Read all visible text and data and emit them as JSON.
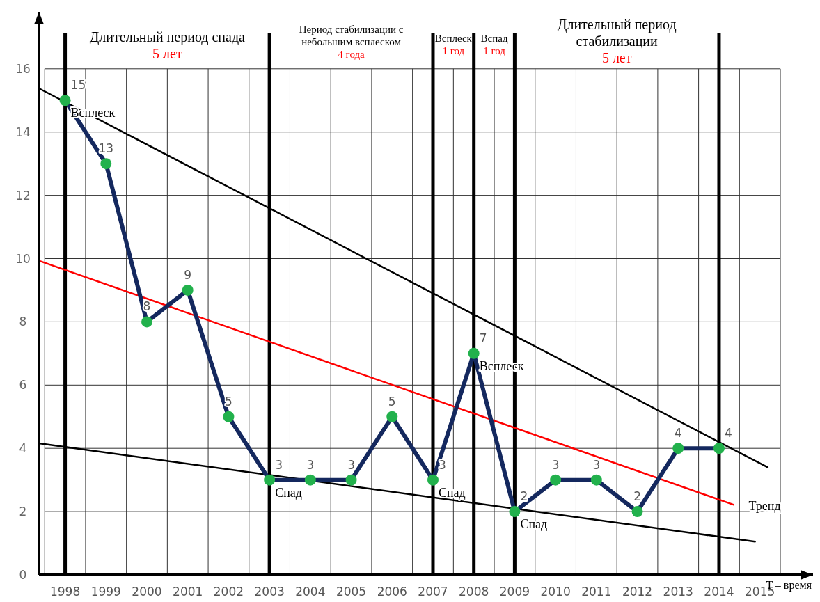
{
  "chart_data": {
    "type": "line",
    "xlabel": "T – время",
    "x": [
      1998,
      1999,
      2000,
      2001,
      2002,
      2003,
      2004,
      2005,
      2006,
      2007,
      2008,
      2009,
      2010,
      2011,
      2012,
      2013,
      2014
    ],
    "series": [
      {
        "color": "#14285e",
        "values": [
          15,
          13,
          8,
          9,
          5,
          3,
          3,
          3,
          5,
          3,
          7,
          2,
          3,
          3,
          2,
          4,
          4
        ],
        "value_labels": [
          "15",
          "13",
          "8",
          "9",
          "5",
          "3",
          "3",
          "3",
          "5",
          "3",
          "7",
          "2",
          "3",
          "3",
          "2",
          "4",
          "4"
        ]
      },
      {
        "type": "line",
        "color": "#000000",
        "marker": "none",
        "x": [
          1997.36,
          2015.19
        ],
        "values": [
          15.38,
          3.4
        ]
      },
      {
        "type": "line",
        "name": "Тренд",
        "color": "#ff0000",
        "marker": "none",
        "x": [
          1997.36,
          2014.35
        ],
        "values": [
          9.93,
          2.22
        ]
      },
      {
        "type": "line",
        "color": "#000000",
        "marker": "none",
        "x": [
          1997.36,
          2014.88
        ],
        "values": [
          4.16,
          1.05
        ]
      }
    ],
    "xlim": [
      1997.36,
      2016.3
    ],
    "xticks": [
      1998,
      1999,
      2000,
      2001,
      2002,
      2003,
      2004,
      2005,
      2006,
      2007,
      2008,
      2009,
      2010,
      2011,
      2012,
      2013,
      2014,
      2015
    ],
    "ylim": [
      0,
      17.8
    ],
    "yticks": [
      0,
      2,
      4,
      6,
      8,
      10,
      12,
      14,
      16
    ],
    "grid": true,
    "marker": "circle",
    "ref_lines": [
      {
        "axis": "x",
        "value": 1998,
        "color": "#000000"
      },
      {
        "axis": "x",
        "value": 2003,
        "color": "#000000"
      },
      {
        "axis": "x",
        "value": 2007,
        "color": "#000000"
      },
      {
        "axis": "x",
        "value": 2008,
        "color": "#000000"
      },
      {
        "axis": "x",
        "value": 2009,
        "color": "#000000"
      },
      {
        "axis": "x",
        "value": 2014,
        "color": "#000000"
      }
    ],
    "annotations": [
      "Длительный период спада\n5 лет",
      "Период стабилизации с\nнебольшим всплеском\n4 года",
      "Всплеск\n1 год",
      "Вспад\n1 год",
      "Длительный период\nстабилизации\n5 лет",
      {
        "text": "Всплеск",
        "x": 1998,
        "y": 15
      },
      {
        "text": "Спад",
        "x": 2003,
        "y": 3
      },
      {
        "text": "Спад",
        "x": 2007,
        "y": 3
      },
      {
        "text": "Всплеск",
        "x": 2008,
        "y": 7
      },
      {
        "text": "Спад",
        "x": 2009,
        "y": 2
      }
    ]
  }
}
